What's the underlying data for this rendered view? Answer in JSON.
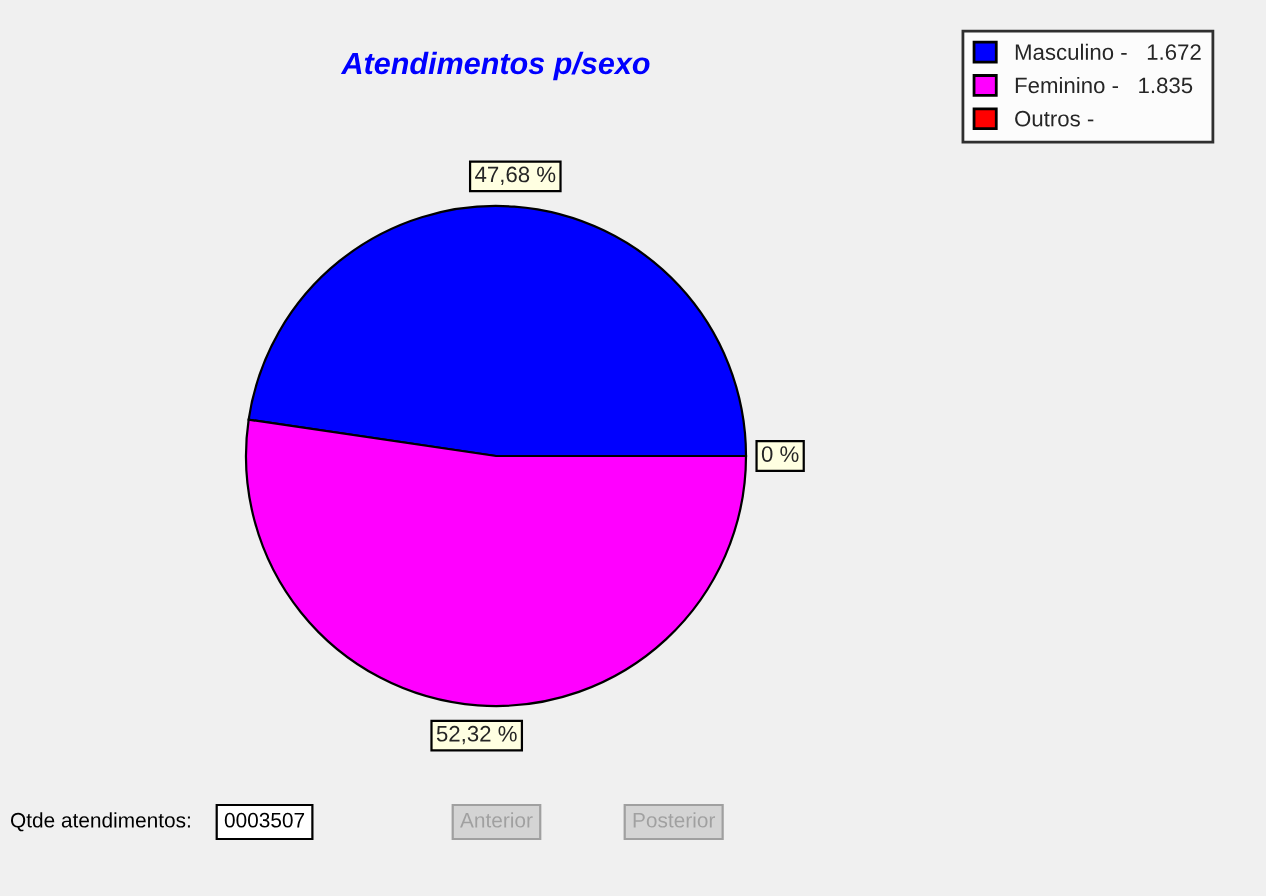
{
  "chart_data": {
    "type": "pie",
    "title": "Atendimentos p/sexo",
    "categories": [
      "Masculino -   1.672",
      "Feminino -   1.835",
      "Outros -"
    ],
    "values": [
      47.68,
      52.32,
      0
    ],
    "colors": [
      "#0000ff",
      "#ff00ff",
      "#ff0000"
    ],
    "value_labels": [
      "47,68 %",
      "52,32 %",
      "0 %"
    ],
    "legend": "top right",
    "annotations": [
      "Qtde atendimentos:",
      "0003507",
      "Anterior",
      "Posterior"
    ]
  }
}
